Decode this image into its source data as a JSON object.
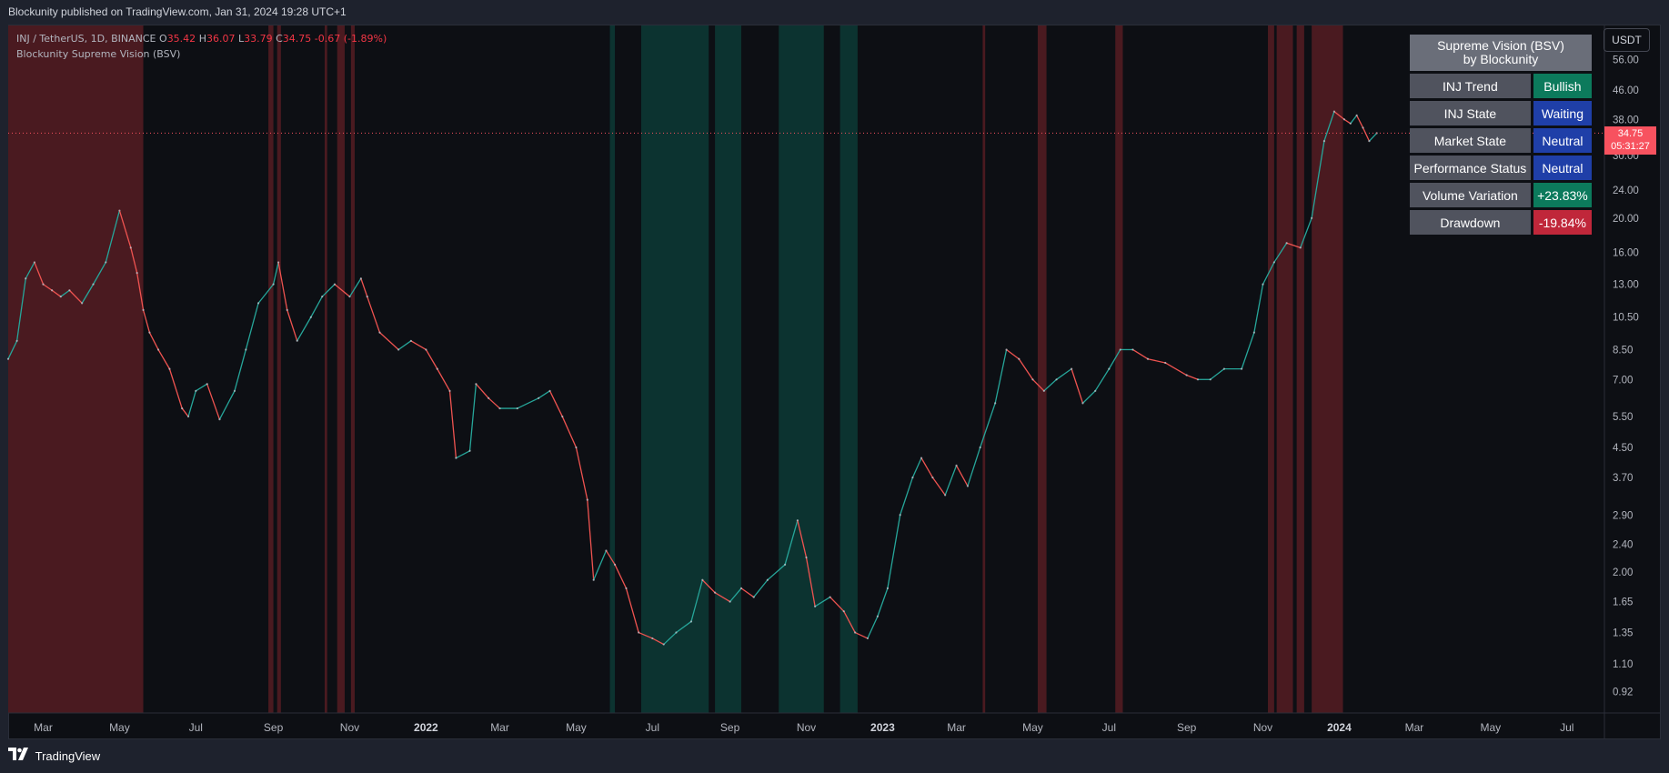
{
  "header": {
    "published": "Blockunity published on TradingView.com, Jan 31, 2024 19:28 UTC+1"
  },
  "legend": {
    "symbol": "INJ / TetherUS, 1D, BINANCE",
    "o_label": "O",
    "o_value": "35.42",
    "h_label": "H",
    "h_value": "36.07",
    "l_label": "L",
    "l_value": "33.79",
    "c_label": "C",
    "c_value": "34.75",
    "change": "-0.67 (-1.89%)",
    "indicator": "Blockunity Supreme Vision (BSV)"
  },
  "info_table": {
    "title_line1": "Supreme Vision (BSV)",
    "title_line2": "by Blockunity",
    "rows": [
      {
        "label": "INJ Trend",
        "value": "Bullish"
      },
      {
        "label": "INJ State",
        "value": "Waiting"
      },
      {
        "label": "Market State",
        "value": "Neutral"
      },
      {
        "label": "Performance Status",
        "value": "Neutral"
      },
      {
        "label": "Volume Variation",
        "value": "+23.83%"
      },
      {
        "label": "Drawdown",
        "value": "-19.84%"
      }
    ]
  },
  "price_axis": {
    "unit": "USDT",
    "last_price": "34.75",
    "countdown": "05:31:27"
  },
  "colors": {
    "up": "#26a69a",
    "down": "#ef5350",
    "bear_zone": "#4a1a20",
    "bull_zone": "#0c3330",
    "background": "#0d0f14"
  },
  "footer": {
    "brand": "TradingView"
  },
  "chart_data": {
    "type": "line",
    "scale": "log",
    "title": "",
    "xlabel": "",
    "ylabel": "",
    "ylim": [
      0.8,
      70
    ],
    "xlim": [
      "2021-02-01",
      "2024-07-31"
    ],
    "y_ticks": [
      "56.00",
      "46.00",
      "38.00",
      "30.00",
      "24.00",
      "20.00",
      "16.00",
      "13.00",
      "10.50",
      "8.50",
      "7.00",
      "5.50",
      "4.50",
      "3.70",
      "2.90",
      "2.40",
      "2.00",
      "1.65",
      "1.35",
      "1.10",
      "0.92"
    ],
    "x_ticks": [
      {
        "label": "Mar",
        "date": "2021-03-01"
      },
      {
        "label": "May",
        "date": "2021-05-01"
      },
      {
        "label": "Jul",
        "date": "2021-07-01"
      },
      {
        "label": "Sep",
        "date": "2021-09-01"
      },
      {
        "label": "Nov",
        "date": "2021-11-01"
      },
      {
        "label": "2022",
        "date": "2022-01-01"
      },
      {
        "label": "Mar",
        "date": "2022-03-01"
      },
      {
        "label": "May",
        "date": "2022-05-01"
      },
      {
        "label": "Jul",
        "date": "2022-07-01"
      },
      {
        "label": "Sep",
        "date": "2022-09-01"
      },
      {
        "label": "Nov",
        "date": "2022-11-01"
      },
      {
        "label": "2023",
        "date": "2023-01-01"
      },
      {
        "label": "Mar",
        "date": "2023-03-01"
      },
      {
        "label": "May",
        "date": "2023-05-01"
      },
      {
        "label": "Jul",
        "date": "2023-07-01"
      },
      {
        "label": "Sep",
        "date": "2023-09-01"
      },
      {
        "label": "Nov",
        "date": "2023-11-01"
      },
      {
        "label": "2024",
        "date": "2024-01-01"
      },
      {
        "label": "Mar",
        "date": "2024-03-01"
      },
      {
        "label": "May",
        "date": "2024-05-01"
      },
      {
        "label": "Jul",
        "date": "2024-07-01"
      }
    ],
    "series": [
      {
        "values": [
          [
            "2021-02-01",
            8.0
          ],
          [
            "2021-02-08",
            9.0
          ],
          [
            "2021-02-15",
            13.5
          ],
          [
            "2021-02-22",
            15.0
          ],
          [
            "2021-03-01",
            13.0
          ],
          [
            "2021-03-08",
            12.5
          ],
          [
            "2021-03-15",
            12.0
          ],
          [
            "2021-03-22",
            12.5
          ],
          [
            "2021-04-01",
            11.5
          ],
          [
            "2021-04-10",
            13.0
          ],
          [
            "2021-04-20",
            15.0
          ],
          [
            "2021-05-01",
            21.0
          ],
          [
            "2021-05-10",
            16.5
          ],
          [
            "2021-05-15",
            14.0
          ],
          [
            "2021-05-20",
            11.0
          ],
          [
            "2021-05-25",
            9.5
          ],
          [
            "2021-06-01",
            8.5
          ],
          [
            "2021-06-10",
            7.5
          ],
          [
            "2021-06-20",
            5.8
          ],
          [
            "2021-06-25",
            5.5
          ],
          [
            "2021-07-01",
            6.5
          ],
          [
            "2021-07-10",
            6.8
          ],
          [
            "2021-07-20",
            5.4
          ],
          [
            "2021-08-01",
            6.5
          ],
          [
            "2021-08-10",
            8.5
          ],
          [
            "2021-08-20",
            11.5
          ],
          [
            "2021-09-01",
            13.0
          ],
          [
            "2021-09-05",
            15.0
          ],
          [
            "2021-09-12",
            11.0
          ],
          [
            "2021-09-20",
            9.0
          ],
          [
            "2021-10-01",
            10.5
          ],
          [
            "2021-10-10",
            12.0
          ],
          [
            "2021-10-20",
            13.0
          ],
          [
            "2021-11-01",
            12.0
          ],
          [
            "2021-11-10",
            13.5
          ],
          [
            "2021-11-15",
            12.0
          ],
          [
            "2021-11-25",
            9.5
          ],
          [
            "2021-12-10",
            8.5
          ],
          [
            "2021-12-20",
            9.0
          ],
          [
            "2022-01-01",
            8.5
          ],
          [
            "2022-01-10",
            7.5
          ],
          [
            "2022-01-20",
            6.5
          ],
          [
            "2022-01-25",
            4.2
          ],
          [
            "2022-02-05",
            4.4
          ],
          [
            "2022-02-10",
            6.8
          ],
          [
            "2022-02-20",
            6.2
          ],
          [
            "2022-03-01",
            5.8
          ],
          [
            "2022-03-15",
            5.8
          ],
          [
            "2022-04-01",
            6.2
          ],
          [
            "2022-04-10",
            6.5
          ],
          [
            "2022-04-20",
            5.5
          ],
          [
            "2022-05-01",
            4.5
          ],
          [
            "2022-05-10",
            3.2
          ],
          [
            "2022-05-15",
            1.9
          ],
          [
            "2022-05-25",
            2.3
          ],
          [
            "2022-06-01",
            2.1
          ],
          [
            "2022-06-10",
            1.8
          ],
          [
            "2022-06-20",
            1.35
          ],
          [
            "2022-07-01",
            1.3
          ],
          [
            "2022-07-10",
            1.25
          ],
          [
            "2022-07-20",
            1.35
          ],
          [
            "2022-08-01",
            1.45
          ],
          [
            "2022-08-10",
            1.9
          ],
          [
            "2022-08-20",
            1.75
          ],
          [
            "2022-09-01",
            1.65
          ],
          [
            "2022-09-10",
            1.8
          ],
          [
            "2022-09-20",
            1.7
          ],
          [
            "2022-10-01",
            1.9
          ],
          [
            "2022-10-15",
            2.1
          ],
          [
            "2022-10-25",
            2.8
          ],
          [
            "2022-11-01",
            2.2
          ],
          [
            "2022-11-08",
            1.6
          ],
          [
            "2022-11-20",
            1.7
          ],
          [
            "2022-12-01",
            1.55
          ],
          [
            "2022-12-10",
            1.35
          ],
          [
            "2022-12-20",
            1.3
          ],
          [
            "2022-12-28",
            1.5
          ],
          [
            "2023-01-05",
            1.8
          ],
          [
            "2023-01-15",
            2.9
          ],
          [
            "2023-01-25",
            3.7
          ],
          [
            "2023-02-01",
            4.2
          ],
          [
            "2023-02-10",
            3.7
          ],
          [
            "2023-02-20",
            3.3
          ],
          [
            "2023-03-01",
            4.0
          ],
          [
            "2023-03-10",
            3.5
          ],
          [
            "2023-03-20",
            4.5
          ],
          [
            "2023-04-01",
            6.0
          ],
          [
            "2023-04-10",
            8.5
          ],
          [
            "2023-04-20",
            8.0
          ],
          [
            "2023-05-01",
            7.0
          ],
          [
            "2023-05-10",
            6.5
          ],
          [
            "2023-05-20",
            7.0
          ],
          [
            "2023-06-01",
            7.5
          ],
          [
            "2023-06-10",
            6.0
          ],
          [
            "2023-06-20",
            6.5
          ],
          [
            "2023-07-01",
            7.5
          ],
          [
            "2023-07-10",
            8.5
          ],
          [
            "2023-07-20",
            8.5
          ],
          [
            "2023-08-01",
            8.0
          ],
          [
            "2023-08-15",
            7.8
          ],
          [
            "2023-09-01",
            7.2
          ],
          [
            "2023-09-10",
            7.0
          ],
          [
            "2023-09-20",
            7.0
          ],
          [
            "2023-10-01",
            7.5
          ],
          [
            "2023-10-15",
            7.5
          ],
          [
            "2023-10-25",
            9.5
          ],
          [
            "2023-11-01",
            13.0
          ],
          [
            "2023-11-10",
            15.0
          ],
          [
            "2023-11-20",
            17.0
          ],
          [
            "2023-12-01",
            16.5
          ],
          [
            "2023-12-10",
            20.0
          ],
          [
            "2023-12-20",
            33.0
          ],
          [
            "2023-12-28",
            40.0
          ],
          [
            "2024-01-05",
            38.0
          ],
          [
            "2024-01-10",
            37.0
          ],
          [
            "2024-01-15",
            39.0
          ],
          [
            "2024-01-20",
            36.0
          ],
          [
            "2024-01-25",
            33.0
          ],
          [
            "2024-01-31",
            34.75
          ]
        ]
      }
    ],
    "zones": [
      {
        "type": "bearish",
        "from": "2021-02-01",
        "to": "2021-05-20"
      },
      {
        "type": "bearish",
        "from": "2021-08-28",
        "to": "2021-09-01"
      },
      {
        "type": "bearish",
        "from": "2021-09-04",
        "to": "2021-09-07"
      },
      {
        "type": "bearish",
        "from": "2021-10-12",
        "to": "2021-10-14"
      },
      {
        "type": "bearish",
        "from": "2021-10-22",
        "to": "2021-10-28"
      },
      {
        "type": "bearish",
        "from": "2021-11-02",
        "to": "2021-11-05"
      },
      {
        "type": "bullish",
        "from": "2022-05-28",
        "to": "2022-06-01"
      },
      {
        "type": "bullish",
        "from": "2022-06-22",
        "to": "2022-08-15"
      },
      {
        "type": "bullish",
        "from": "2022-08-20",
        "to": "2022-09-10"
      },
      {
        "type": "bullish",
        "from": "2022-10-10",
        "to": "2022-11-15"
      },
      {
        "type": "bullish",
        "from": "2022-11-28",
        "to": "2022-12-12"
      },
      {
        "type": "bearish",
        "from": "2023-03-22",
        "to": "2023-03-24"
      },
      {
        "type": "bearish",
        "from": "2023-05-05",
        "to": "2023-05-12"
      },
      {
        "type": "bearish",
        "from": "2023-07-06",
        "to": "2023-07-12"
      },
      {
        "type": "bearish",
        "from": "2023-11-05",
        "to": "2023-11-10"
      },
      {
        "type": "bearish",
        "from": "2023-11-12",
        "to": "2023-11-25"
      },
      {
        "type": "bearish",
        "from": "2023-11-28",
        "to": "2023-12-04"
      },
      {
        "type": "bearish",
        "from": "2023-12-10",
        "to": "2024-01-04"
      }
    ]
  }
}
